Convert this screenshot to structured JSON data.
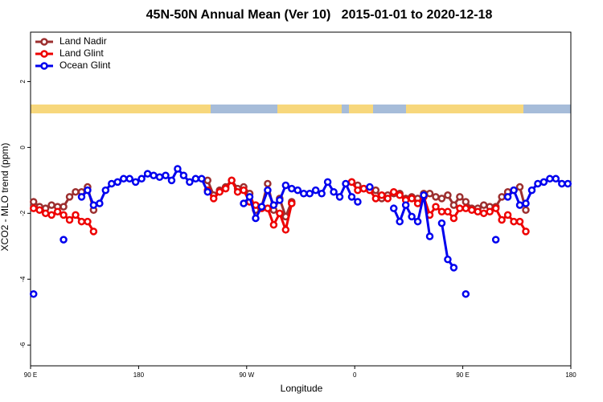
{
  "chart_data": {
    "type": "line",
    "title": "45N-50N Annual Mean (Ver 10)   2015-01-01 to 2020-12-18",
    "x_label": "Longitude",
    "y_label": "XCO2 - MLO trend (ppm)",
    "x": [
      92.5,
      97.5,
      102.5,
      107.5,
      112.5,
      117.5,
      122.5,
      127.5,
      132.5,
      137.5,
      142.5,
      147.5,
      152.5,
      157.5,
      162.5,
      167.5,
      172.5,
      177.5,
      182.5,
      187.5,
      192.5,
      197.5,
      202.5,
      207.5,
      212.5,
      217.5,
      222.5,
      227.5,
      232.5,
      237.5,
      242.5,
      247.5,
      252.5,
      257.5,
      262.5,
      267.5,
      272.5,
      277.5,
      282.5,
      287.5,
      292.5,
      297.5,
      302.5,
      307.5,
      312.5,
      317.5,
      322.5,
      327.5,
      332.5,
      337.5,
      342.5,
      347.5,
      352.5,
      357.5,
      362.5,
      367.5,
      372.5,
      377.5,
      382.5,
      387.5,
      392.5,
      397.5,
      402.5,
      407.5,
      412.5,
      417.5,
      422.5,
      427.5,
      432.5,
      437.5,
      442.5,
      447.5,
      452.5,
      457.5,
      462.5,
      467.5,
      472.5,
      477.5,
      482.5,
      487.5,
      492.5,
      497.5,
      502.5,
      507.5,
      512.5,
      517.5,
      522.5,
      527.5,
      532.5,
      537.5
    ],
    "series": [
      {
        "name": "Land Nadir",
        "color": "#9c2f2f",
        "values": [
          -1.65,
          -1.8,
          -1.85,
          -1.75,
          -1.8,
          -1.8,
          -1.5,
          -1.35,
          -1.35,
          -1.2,
          -1.9,
          null,
          null,
          null,
          null,
          null,
          null,
          null,
          null,
          null,
          null,
          null,
          null,
          null,
          null,
          null,
          null,
          null,
          null,
          -1.0,
          -1.45,
          -1.3,
          -1.2,
          -1.0,
          -1.25,
          -1.2,
          -1.4,
          -1.9,
          -1.8,
          -1.1,
          -1.9,
          -1.55,
          -2.1,
          -1.65,
          null,
          null,
          null,
          null,
          null,
          null,
          null,
          null,
          null,
          -1.05,
          -1.15,
          -1.25,
          -1.25,
          -1.3,
          -1.55,
          -1.45,
          -1.4,
          -1.4,
          -1.55,
          -1.5,
          -1.55,
          -1.4,
          -1.4,
          -1.5,
          -1.55,
          -1.45,
          -1.75,
          -1.5,
          -1.65,
          -1.85,
          -1.85,
          -1.75,
          -1.8,
          -1.8,
          -1.5,
          -1.35,
          -1.3,
          -1.2,
          -1.9,
          null,
          null,
          null,
          null,
          null,
          null,
          null
        ]
      },
      {
        "name": "Land Glint",
        "color": "#ee0000",
        "values": [
          -1.85,
          -1.9,
          -2.0,
          -2.05,
          -1.95,
          -2.05,
          -2.2,
          -2.05,
          -2.25,
          -2.25,
          -2.55,
          null,
          null,
          null,
          null,
          null,
          null,
          null,
          null,
          null,
          null,
          null,
          null,
          null,
          null,
          null,
          null,
          null,
          null,
          -1.3,
          -1.55,
          -1.35,
          -1.25,
          -1.0,
          -1.35,
          -1.3,
          -1.65,
          -1.75,
          -1.85,
          -1.85,
          -2.35,
          -2.0,
          -2.5,
          -1.7,
          null,
          null,
          null,
          null,
          null,
          null,
          null,
          null,
          null,
          -1.05,
          -1.3,
          -1.25,
          -1.3,
          -1.55,
          -1.45,
          -1.55,
          -1.35,
          -1.45,
          -1.6,
          -1.55,
          -1.7,
          -1.5,
          -2.05,
          -1.8,
          -1.95,
          -1.95,
          -2.15,
          -1.85,
          -1.85,
          -1.9,
          -1.95,
          -2.0,
          -1.95,
          -1.85,
          -2.2,
          -2.05,
          -2.25,
          -2.25,
          -2.55,
          null,
          null,
          null,
          null,
          null,
          null,
          null
        ]
      },
      {
        "name": "Ocean Glint",
        "color": "#0000ee",
        "values": [
          -4.45,
          null,
          null,
          null,
          null,
          -2.8,
          null,
          null,
          -1.5,
          -1.3,
          -1.75,
          -1.7,
          -1.3,
          -1.1,
          -1.05,
          -0.95,
          -0.95,
          -1.05,
          -0.95,
          -0.8,
          -0.85,
          -0.9,
          -0.85,
          -1.0,
          -0.65,
          -0.85,
          -1.05,
          -0.95,
          -0.95,
          -1.35,
          null,
          null,
          null,
          null,
          null,
          -1.7,
          -1.5,
          -2.15,
          -1.8,
          -1.3,
          -1.75,
          -1.6,
          -1.15,
          -1.25,
          -1.3,
          -1.4,
          -1.4,
          -1.3,
          -1.4,
          -1.05,
          -1.35,
          -1.5,
          -1.1,
          -1.5,
          -1.65,
          null,
          -1.2,
          null,
          null,
          null,
          -1.85,
          -2.25,
          -1.75,
          -2.1,
          -2.25,
          -1.45,
          -2.7,
          null,
          -2.3,
          -3.4,
          -3.65,
          null,
          -4.45,
          null,
          null,
          null,
          null,
          -2.8,
          null,
          -1.5,
          -1.3,
          -1.75,
          -1.7,
          -1.3,
          -1.1,
          -1.05,
          -0.95,
          -0.95,
          -1.1,
          -1.1
        ]
      }
    ],
    "xlim": [
      90,
      540
    ],
    "xticks": [
      {
        "value": 90,
        "label": "90 E"
      },
      180,
      {
        "value": 270,
        "label": "90 W"
      },
      {
        "value": 360,
        "label": "0"
      },
      {
        "value": 450,
        "label": "90 E"
      },
      {
        "value": 540,
        "label": "180"
      }
    ],
    "ylim": [
      -6.63,
      3.5
    ],
    "yticks": [
      -6,
      -4,
      -2,
      0,
      2
    ],
    "legend": "top-left"
  }
}
